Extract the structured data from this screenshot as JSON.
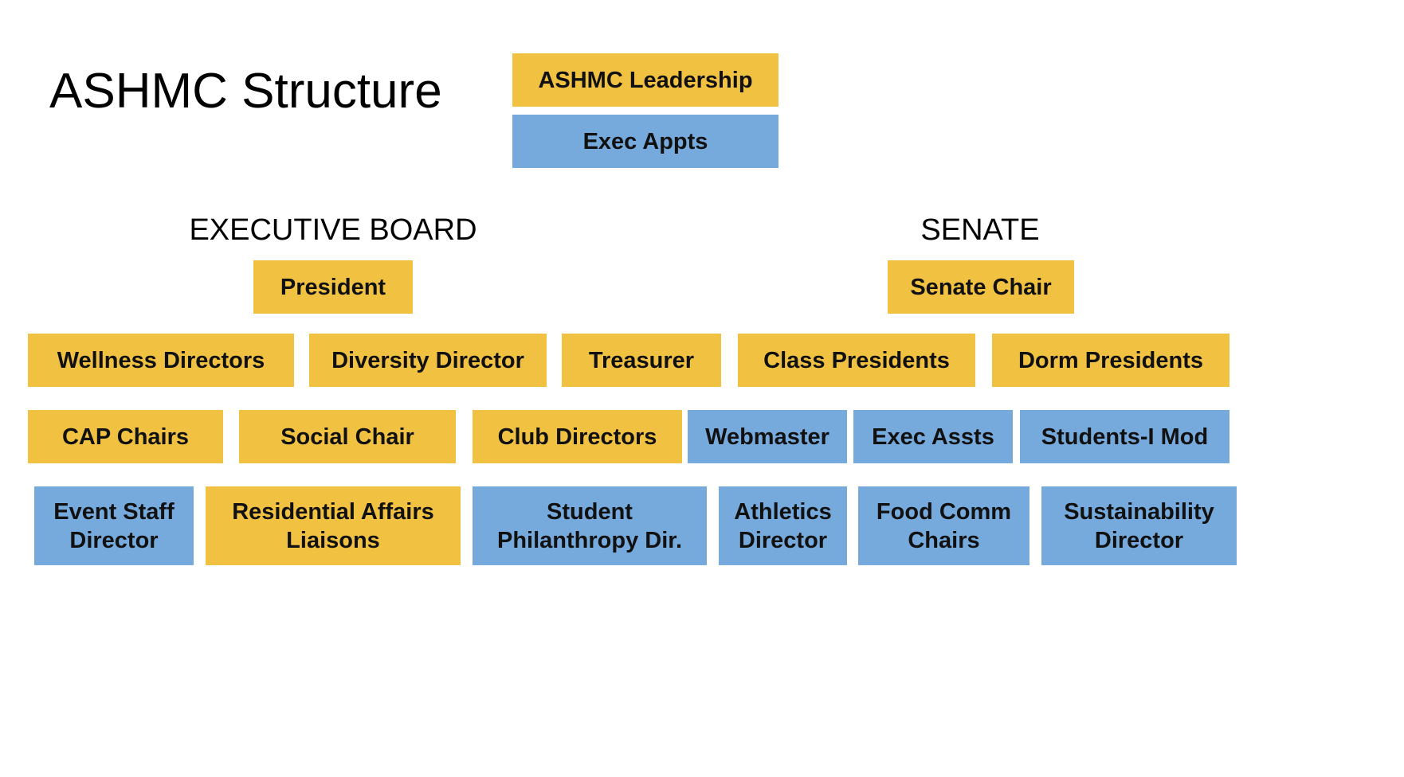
{
  "title": "ASHMC Structure",
  "legend": {
    "leadership": "ASHMC Leadership",
    "appointed": "Exec Appts"
  },
  "colors": {
    "leadership": "#f1c142",
    "appointed": "#76a9dc"
  },
  "executive_board": {
    "heading": "EXECUTIVE BOARD",
    "head": "President"
  },
  "senate": {
    "heading": "SENATE",
    "head": "Senate Chair"
  },
  "row1": [
    "Wellness Directors",
    "Diversity Director",
    "Treasurer",
    "Class Presidents",
    "Dorm Presidents"
  ],
  "row2": [
    "CAP Chairs",
    "Social Chair",
    "Club Directors",
    "Webmaster",
    "Exec Assts",
    "Students-I Mod"
  ],
  "row3": [
    "Event Staff\nDirector",
    "Residential Affairs\nLiaisons",
    "Student\nPhilanthropy Dir.",
    "Athletics\nDirector",
    "Food Comm\nChairs",
    "Sustainability\nDirector"
  ]
}
